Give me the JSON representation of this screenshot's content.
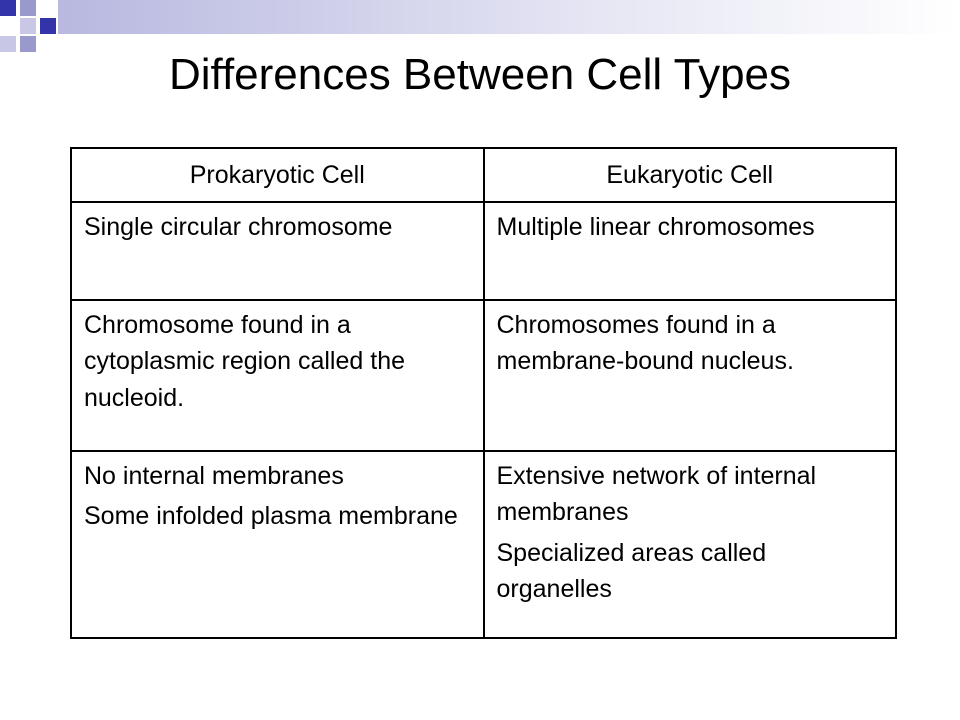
{
  "header": {
    "title": "Differences Between Cell Types"
  },
  "table": {
    "columns": [
      "Prokaryotic Cell",
      "Eukaryotic Cell"
    ],
    "rows": [
      [
        [
          "Single circular chromosome"
        ],
        [
          "Multiple linear chromosomes"
        ]
      ],
      [
        [
          "Chromosome found in a cytoplasmic region called the nucleoid."
        ],
        [
          "Chromosomes found in a membrane-bound nucleus."
        ]
      ],
      [
        [
          "No internal membranes",
          "Some infolded plasma membrane"
        ],
        [
          "Extensive network of internal membranes",
          "Specialized areas called organelles"
        ]
      ]
    ]
  }
}
